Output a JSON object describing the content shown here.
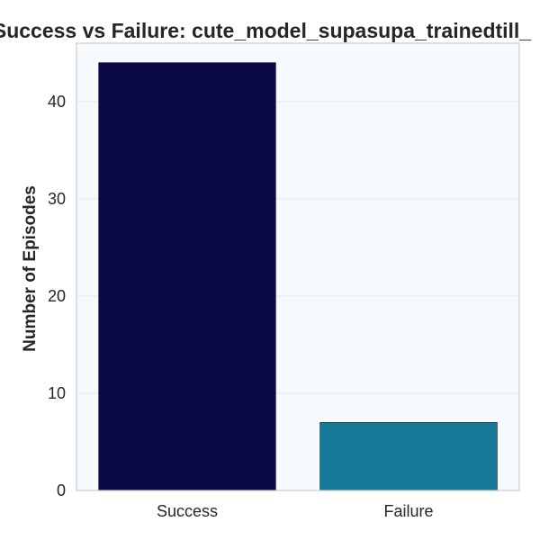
{
  "chart_data": {
    "type": "bar",
    "title": "Success vs Failure: cute_model_supasupa_trainedtill_",
    "xlabel": "",
    "ylabel": "Number of Episodes",
    "categories": [
      "Success",
      "Failure"
    ],
    "values": [
      44,
      7
    ],
    "ylim": [
      0,
      46
    ],
    "yticks": [
      0,
      10,
      20,
      30,
      40
    ],
    "grid": true,
    "legend": "none",
    "colors": {
      "bars": [
        "#0c0a46",
        "#157896"
      ],
      "plot_background": "#f7fafd",
      "grid": "#e6eaf0",
      "frame": "#cccccc",
      "text": "#262626"
    }
  }
}
